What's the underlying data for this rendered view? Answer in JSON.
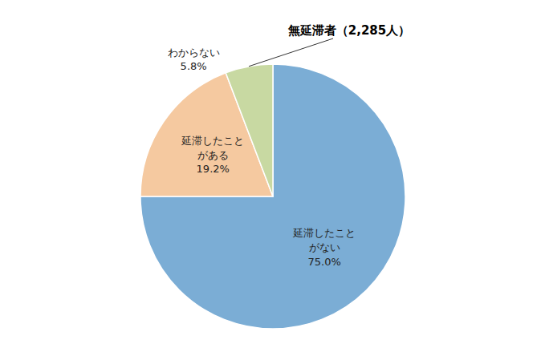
{
  "chart_data": {
    "type": "pie",
    "title": "無延滞者（2,285人）",
    "categories": [
      "延滞したこと\nがない",
      "延滞したこと\nがある",
      "わからない"
    ],
    "values": [
      75.0,
      19.2,
      5.8
    ],
    "value_labels": [
      "75.0%",
      "19.2%",
      "5.8%"
    ],
    "colors": [
      "#7badd5",
      "#f5c9a0",
      "#c8d9a2"
    ],
    "data_labels": true
  }
}
